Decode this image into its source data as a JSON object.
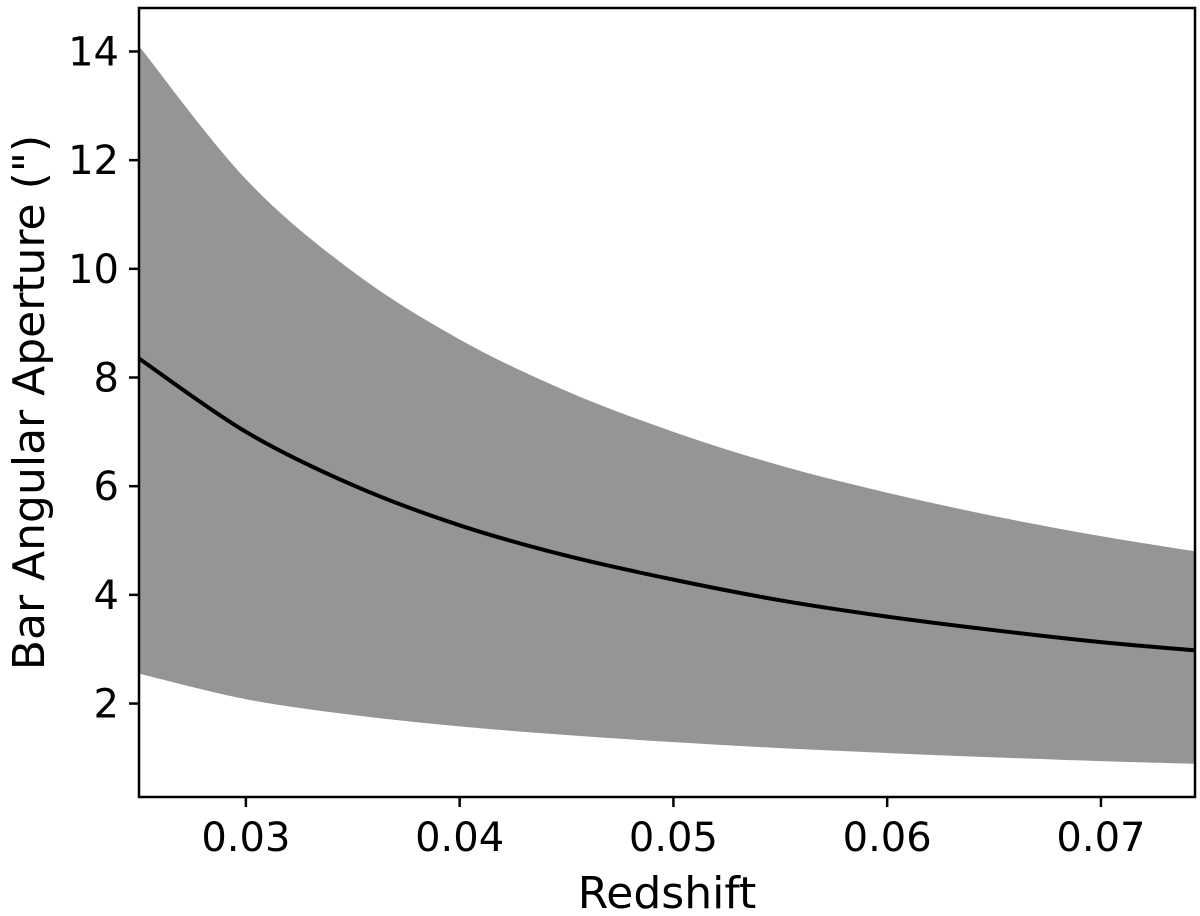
{
  "chart_data": {
    "type": "area",
    "title": "",
    "xlabel": "Redshift",
    "ylabel": "Bar Angular Aperture (\")",
    "xlim": [
      0.025,
      0.0744
    ],
    "ylim": [
      0.28,
      14.8
    ],
    "grid": false,
    "xticks": [
      0.03,
      0.04,
      0.05,
      0.06,
      0.07
    ],
    "xtick_labels": [
      "0.03",
      "0.04",
      "0.05",
      "0.06",
      "0.07"
    ],
    "yticks": [
      2,
      4,
      6,
      8,
      10,
      12,
      14
    ],
    "ytick_labels": [
      "2",
      "4",
      "6",
      "8",
      "10",
      "12",
      "14"
    ],
    "colors": {
      "band": "#959595",
      "line": "#000000",
      "axes": "#000000"
    },
    "series": [
      {
        "role": "central-line",
        "x": [
          0.025,
          0.03,
          0.035,
          0.04,
          0.045,
          0.05,
          0.055,
          0.06,
          0.065,
          0.07,
          0.0744
        ],
        "y": [
          8.35,
          7.0,
          6.02,
          5.28,
          4.72,
          4.28,
          3.9,
          3.6,
          3.35,
          3.13,
          2.98
        ]
      },
      {
        "role": "band-upper",
        "x": [
          0.025,
          0.03,
          0.035,
          0.04,
          0.045,
          0.05,
          0.055,
          0.06,
          0.065,
          0.07,
          0.0744
        ],
        "y": [
          14.1,
          11.65,
          9.95,
          8.7,
          7.75,
          7.0,
          6.38,
          5.88,
          5.45,
          5.08,
          4.8
        ]
      },
      {
        "role": "band-lower",
        "x": [
          0.025,
          0.03,
          0.035,
          0.04,
          0.045,
          0.05,
          0.055,
          0.06,
          0.065,
          0.07,
          0.0744
        ],
        "y": [
          2.55,
          2.08,
          1.79,
          1.58,
          1.42,
          1.29,
          1.18,
          1.09,
          1.01,
          0.94,
          0.89
        ]
      }
    ]
  }
}
